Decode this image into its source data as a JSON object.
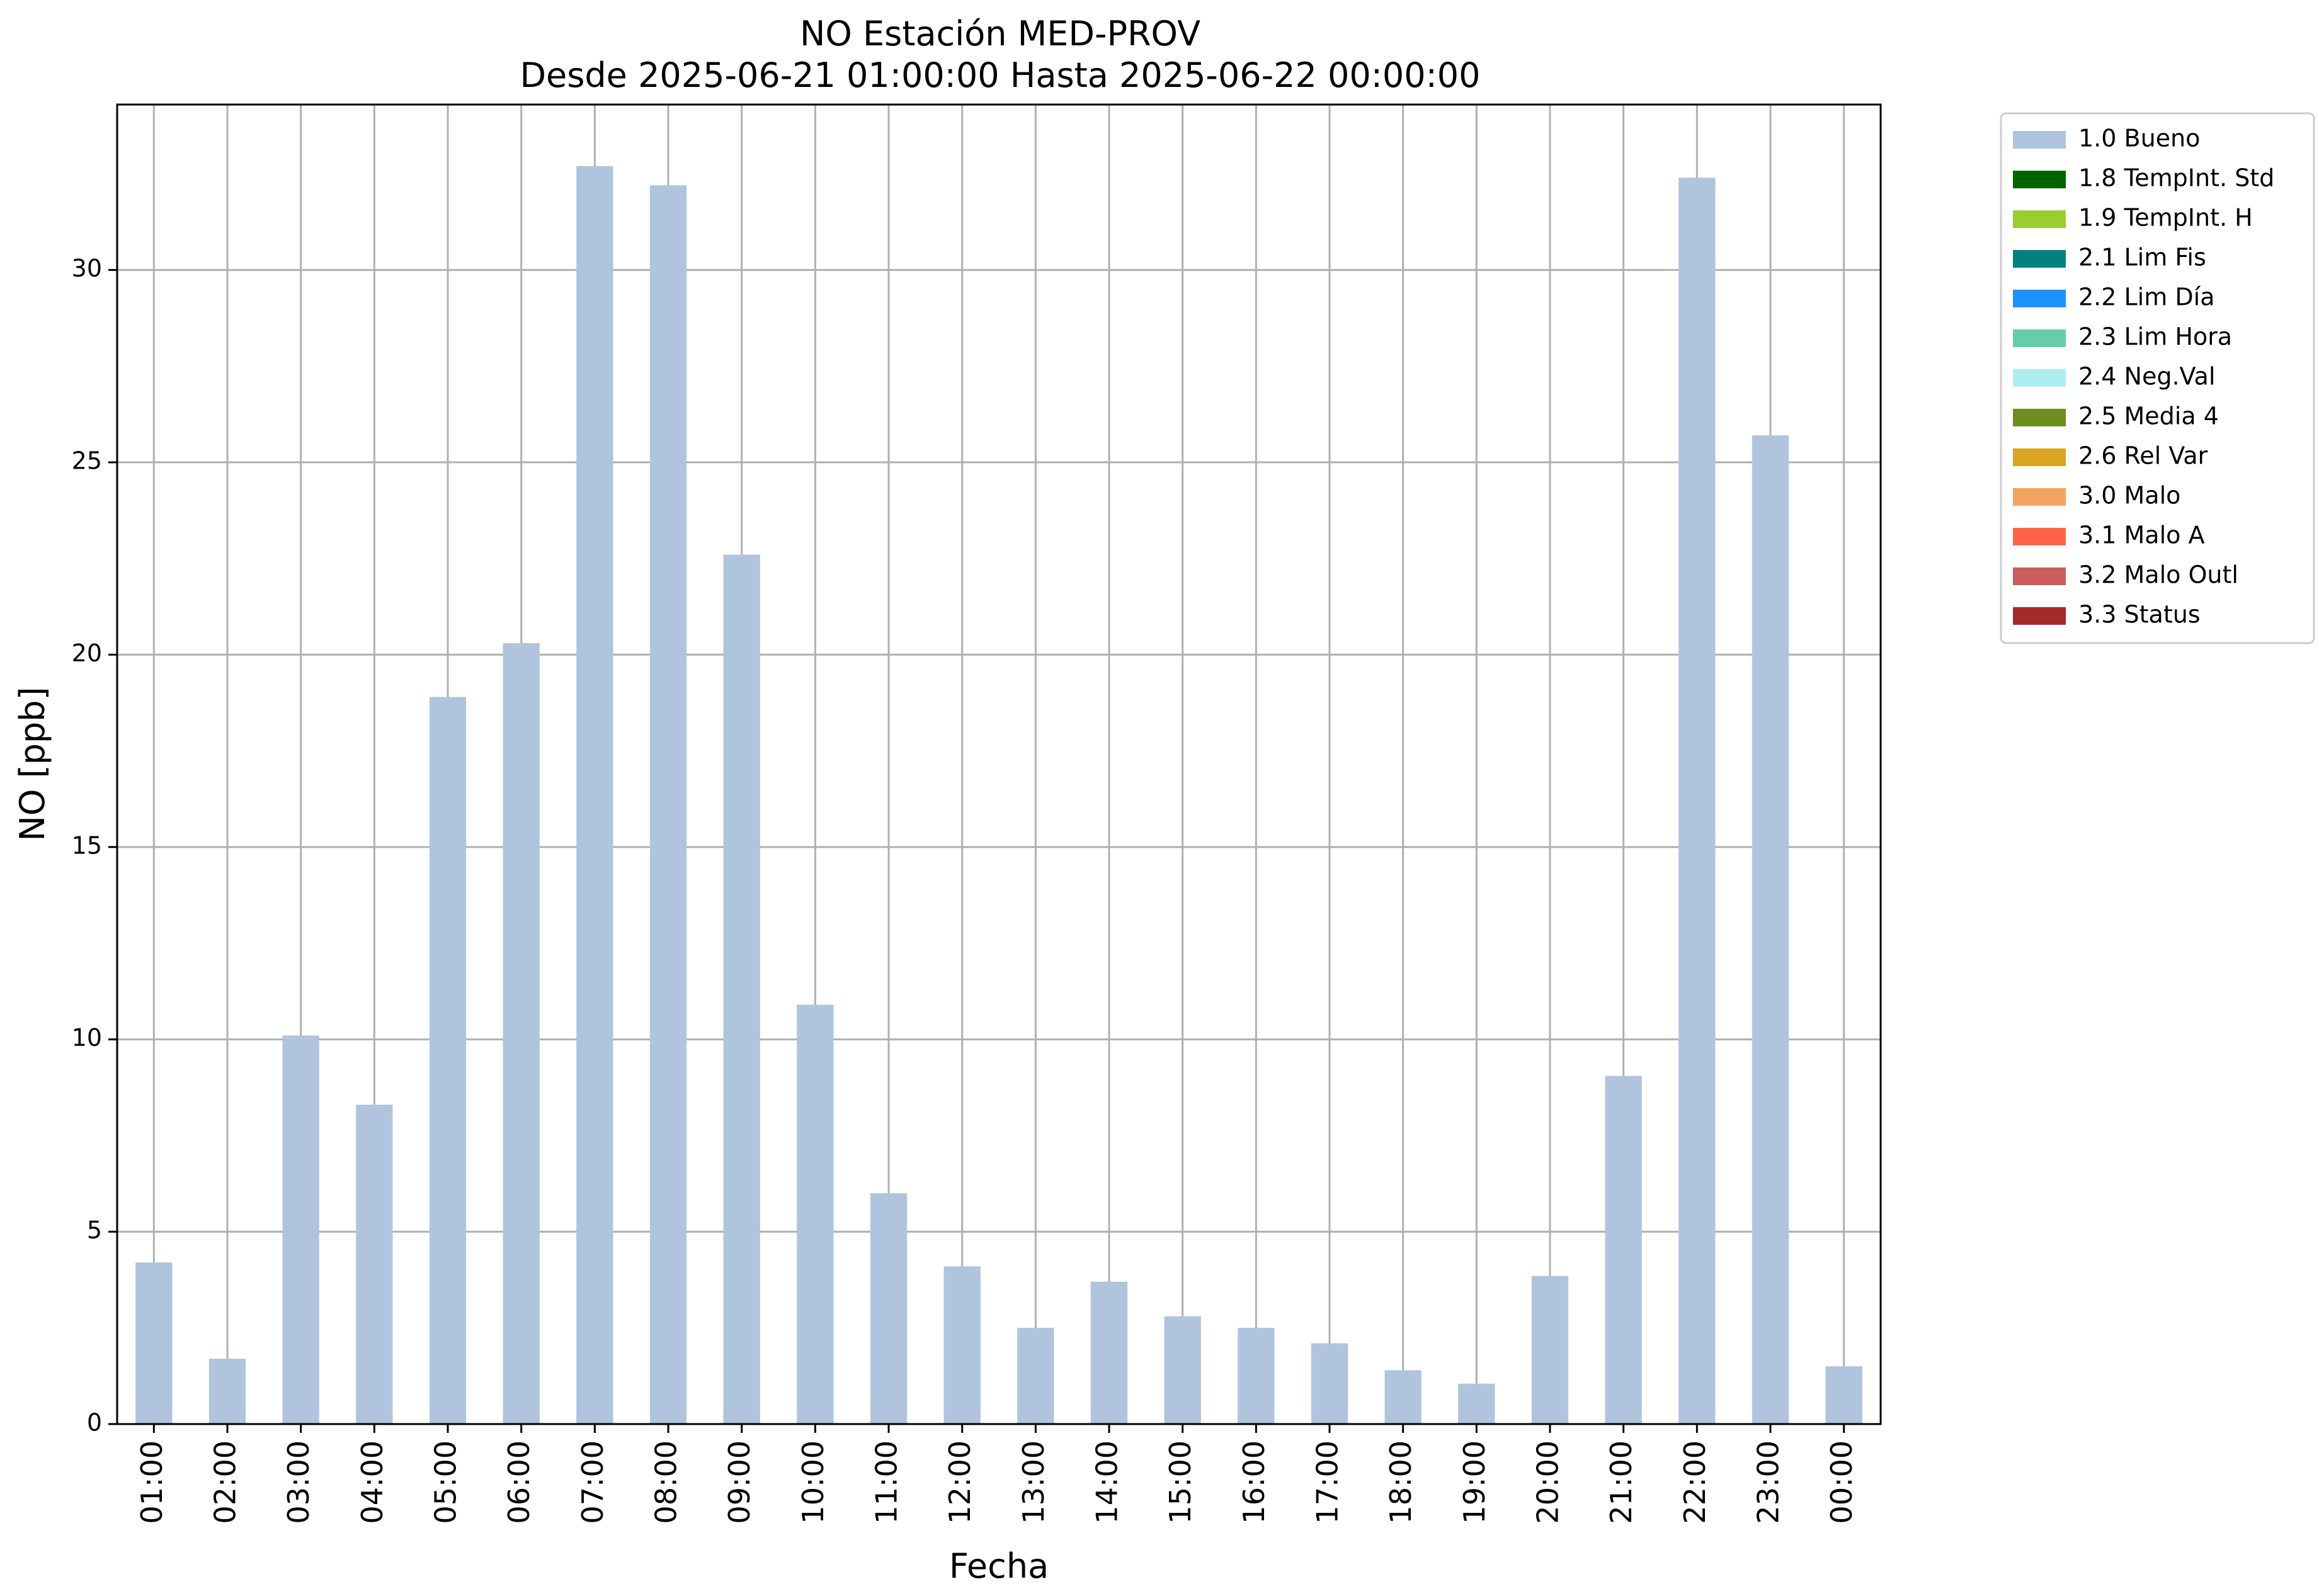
{
  "chart_data": {
    "type": "bar",
    "title": "NO Estación MED-PROV",
    "subtitle": "Desde 2025-06-21 01:00:00 Hasta 2025-06-22 00:00:00",
    "xlabel": "Fecha",
    "ylabel": "NO [ppb]",
    "ylim": [
      0,
      34.3
    ],
    "yticks": [
      0,
      5,
      10,
      15,
      20,
      25,
      30
    ],
    "grid": true,
    "legend_position": "outside-top-right",
    "categories": [
      "01:00",
      "02:00",
      "03:00",
      "04:00",
      "05:00",
      "06:00",
      "07:00",
      "08:00",
      "09:00",
      "10:00",
      "11:00",
      "12:00",
      "13:00",
      "14:00",
      "15:00",
      "16:00",
      "17:00",
      "18:00",
      "19:00",
      "20:00",
      "21:00",
      "22:00",
      "23:00",
      "00:00"
    ],
    "series": [
      {
        "name": "1.0 Bueno",
        "color": "#b0c4de",
        "values": [
          4.2,
          1.7,
          10.1,
          8.3,
          18.9,
          20.3,
          32.7,
          32.2,
          22.6,
          10.9,
          6.0,
          4.1,
          2.5,
          3.7,
          2.8,
          2.5,
          2.1,
          1.4,
          1.05,
          3.85,
          9.05,
          32.4,
          25.7,
          1.5
        ]
      }
    ],
    "legend": [
      {
        "label": "1.0 Bueno",
        "color": "#b0c4de"
      },
      {
        "label": "1.8 TempInt. Std",
        "color": "#006400"
      },
      {
        "label": "1.9 TempInt. H",
        "color": "#9acd32"
      },
      {
        "label": "2.1 Lim Fis",
        "color": "#008080"
      },
      {
        "label": "2.2 Lim Día",
        "color": "#1e90ff"
      },
      {
        "label": "2.3 Lim Hora",
        "color": "#66cdaa"
      },
      {
        "label": "2.4 Neg.Val",
        "color": "#afeeee"
      },
      {
        "label": "2.5 Media 4",
        "color": "#6b8e23"
      },
      {
        "label": "2.6 Rel Var",
        "color": "#daa520"
      },
      {
        "label": "3.0 Malo",
        "color": "#f4a460"
      },
      {
        "label": "3.1 Malo A",
        "color": "#ff6347"
      },
      {
        "label": "3.2 Malo Outl",
        "color": "#cd5c5c"
      },
      {
        "label": "3.3 Status",
        "color": "#a52a2a"
      }
    ]
  }
}
